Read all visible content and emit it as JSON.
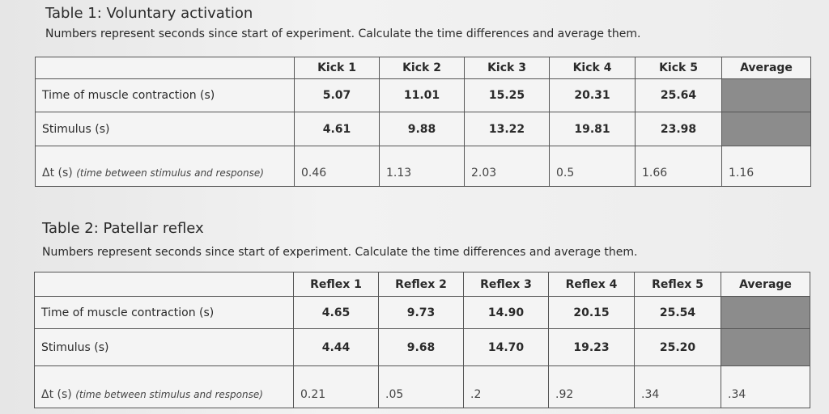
{
  "tables": [
    {
      "title": "Table 1: Voluntary activation",
      "subtitle": "Numbers represent seconds since start of experiment. Calculate the time differences and average them.",
      "columns": [
        "Kick 1",
        "Kick 2",
        "Kick 3",
        "Kick 4",
        "Kick 5",
        "Average"
      ],
      "rows": [
        {
          "label": "Time of muscle contraction (s)",
          "cells": [
            "5.07",
            "11.01",
            "15.25",
            "20.31",
            "25.64"
          ]
        },
        {
          "label": "Stimulus (s)",
          "cells": [
            "4.61",
            "9.88",
            "13.22",
            "19.81",
            "23.98"
          ]
        },
        {
          "label": "Δt (s)",
          "note": "(time between stimulus and response)",
          "cells": [
            "0.46",
            "1.13",
            "2.03",
            "0.5",
            "1.66",
            "1.16"
          ]
        }
      ]
    },
    {
      "title": "Table 2: Patellar reflex",
      "subtitle": "Numbers represent seconds since start of experiment. Calculate the time differences and average them.",
      "columns": [
        "Reflex 1",
        "Reflex 2",
        "Reflex 3",
        "Reflex 4",
        "Reflex 5",
        "Average"
      ],
      "rows": [
        {
          "label": "Time of muscle contraction (s)",
          "cells": [
            "4.65",
            "9.73",
            "14.90",
            "20.15",
            "25.54"
          ]
        },
        {
          "label": "Stimulus (s)",
          "cells": [
            "4.44",
            "9.68",
            "14.70",
            "19.23",
            "25.20"
          ]
        },
        {
          "label": "Δt (s)",
          "note": "(time between stimulus and response)",
          "cells": [
            "0.21",
            ".05",
            ".2",
            ".92",
            ".34",
            ".34"
          ]
        }
      ]
    }
  ]
}
